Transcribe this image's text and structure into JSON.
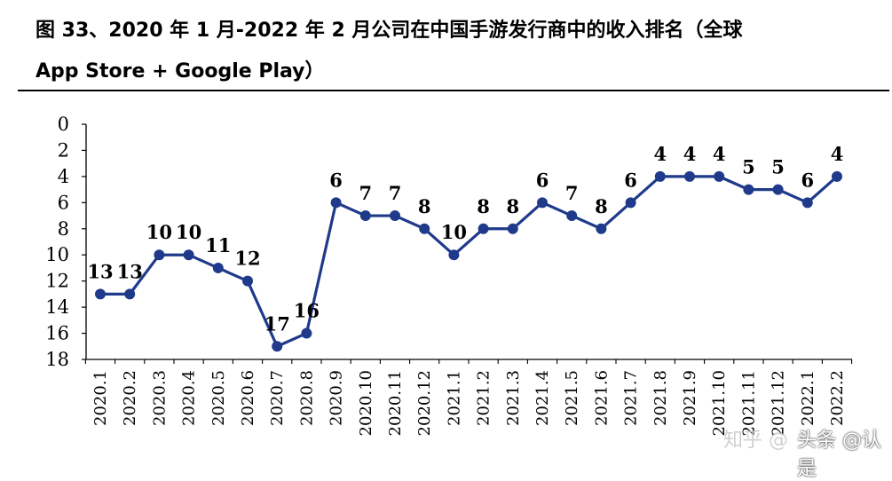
{
  "figure": {
    "title_line1": "图 33、2020 年 1 月-2022 年 2 月公司在中国手游发行商中的收入排名（全球",
    "title_line2": "App Store + Google Play）",
    "watermark_left": "知乎 @",
    "watermark_right": "头条 @认是"
  },
  "chart_data": {
    "type": "line",
    "title": "",
    "xlabel": "",
    "ylabel": "",
    "y_inverted": true,
    "ylim": [
      0,
      18
    ],
    "yticks": [
      0,
      2,
      4,
      6,
      8,
      10,
      12,
      14,
      16,
      18
    ],
    "grid": false,
    "legend": "none",
    "line_color": "#1f3a8a",
    "categories": [
      "2020.1",
      "2020.2",
      "2020.3",
      "2020.4",
      "2020.5",
      "2020.6",
      "2020.7",
      "2020.8",
      "2020.9",
      "2020.10",
      "2020.11",
      "2020.12",
      "2021.1",
      "2021.2",
      "2021.3",
      "2021.4",
      "2021.5",
      "2021.6",
      "2021.7",
      "2021.8",
      "2021.9",
      "2021.10",
      "2021.11",
      "2021.12",
      "2022.1",
      "2022.2"
    ],
    "series": [
      {
        "values": [
          13,
          13,
          10,
          10,
          11,
          12,
          17,
          16,
          6,
          7,
          7,
          8,
          10,
          8,
          8,
          6,
          7,
          8,
          6,
          4,
          4,
          4,
          5,
          5,
          6,
          4
        ]
      }
    ]
  }
}
